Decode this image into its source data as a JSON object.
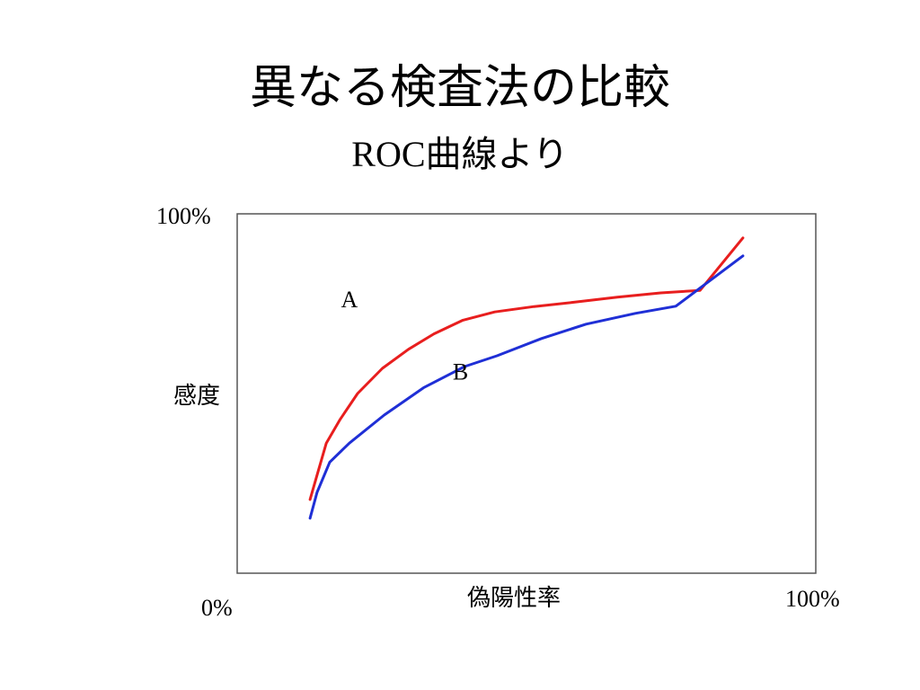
{
  "slide": {
    "title": "異なる検査法の比較",
    "subtitle": "ROC曲線より"
  },
  "chart_data": {
    "type": "line",
    "xlabel": "偽陽性率",
    "ylabel": "感度",
    "xlim": [
      0,
      100
    ],
    "ylim": [
      0,
      100
    ],
    "x_tick_labels": [
      "0%",
      "100%"
    ],
    "y_tick_labels": [
      "100%"
    ],
    "grid": false,
    "legend": "none",
    "series": [
      {
        "name": "A",
        "color": "#e81e1e",
        "x": [
          12.6,
          13.8,
          15.4,
          17.8,
          20.8,
          25.1,
          29.6,
          34.0,
          39.0,
          44.5,
          51.3,
          58.2,
          65.7,
          73.2,
          80.0,
          87.4
        ],
        "y": [
          20.5,
          27.3,
          36.2,
          42.8,
          50.0,
          57.0,
          62.3,
          66.6,
          70.4,
          72.7,
          74.2,
          75.4,
          76.8,
          78.0,
          78.7,
          93.3
        ]
      },
      {
        "name": "B",
        "color": "#1f2fd6",
        "x": [
          12.6,
          13.8,
          16.0,
          19.4,
          25.4,
          32.2,
          39.3,
          44.9,
          52.6,
          60.3,
          68.8,
          75.8,
          87.4
        ],
        "y": [
          15.3,
          22.5,
          30.9,
          36.2,
          44.0,
          51.6,
          57.5,
          60.5,
          65.3,
          69.3,
          72.3,
          74.3,
          88.3
        ]
      }
    ],
    "annotations": [
      {
        "text": "A",
        "x": 19.4,
        "y": 75.5
      },
      {
        "text": "B",
        "x": 38.6,
        "y": 55.4
      }
    ]
  }
}
